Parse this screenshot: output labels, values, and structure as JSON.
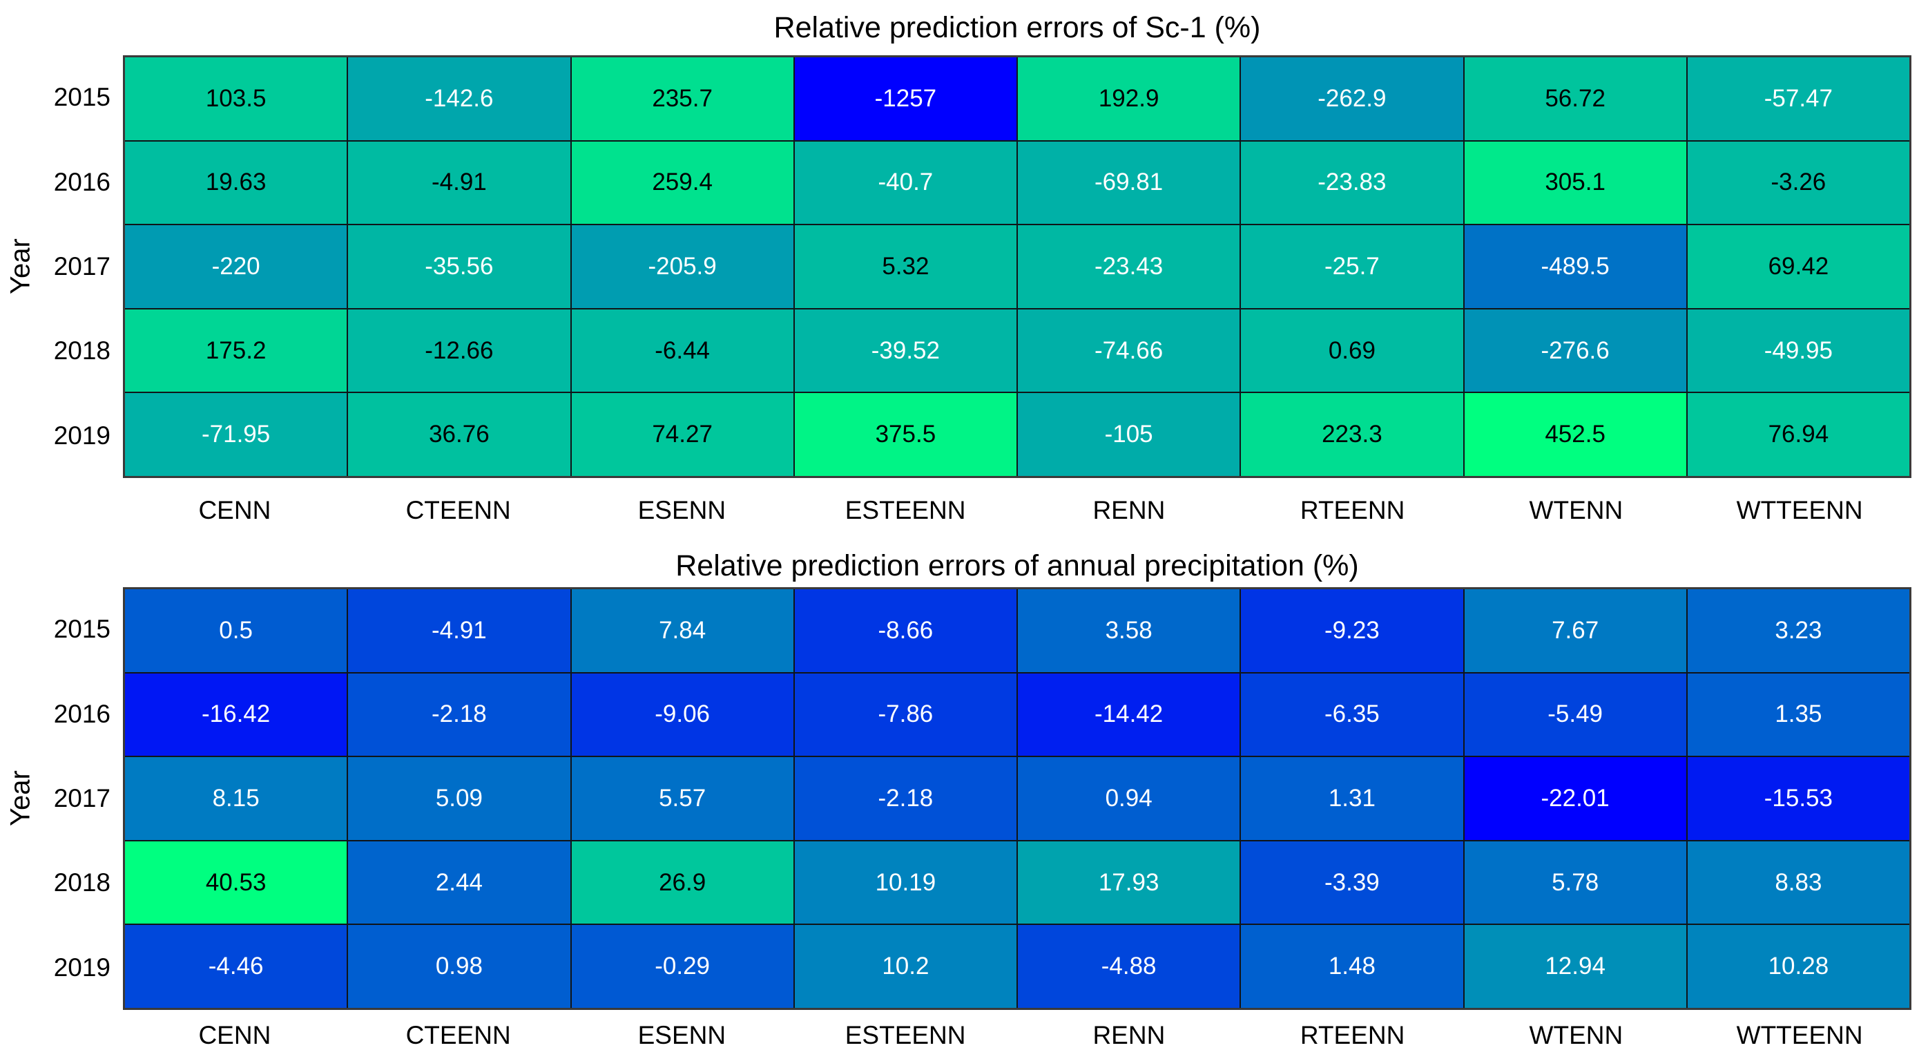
{
  "colors": {
    "background": "#ffffff",
    "grid_line": "#101418",
    "axis_border": "#3a3a3a",
    "cell_text_dark": "#000000",
    "cell_text_light": "#ffffff",
    "colormap_low": "#0000ff",
    "colormap_high": "#00ff80"
  },
  "chart_data": [
    {
      "type": "heatmap",
      "title": "Relative prediction errors  of Sc-1 (%)",
      "xlabel": "",
      "ylabel": "Year",
      "colormap": "winter",
      "legend_position": "none",
      "grid": true,
      "columns": [
        "CENN",
        "CTEENN",
        "ESENN",
        "ESTEENN",
        "RENN",
        "RTEENN",
        "WTENN",
        "WTTEENN"
      ],
      "rows": [
        "2015",
        "2016",
        "2017",
        "2018",
        "2019"
      ],
      "values": [
        [
          103.5,
          -142.6,
          235.7,
          -1257,
          192.9,
          -262.9,
          56.72,
          -57.47
        ],
        [
          19.63,
          -4.91,
          259.4,
          -40.7,
          -69.81,
          -23.83,
          305.1,
          -3.26
        ],
        [
          -220,
          -35.56,
          -205.9,
          5.32,
          -23.43,
          -25.7,
          -489.5,
          69.42
        ],
        [
          175.2,
          -12.66,
          -6.44,
          -39.52,
          -74.66,
          0.69,
          -276.6,
          -49.95
        ],
        [
          -71.95,
          36.76,
          74.27,
          375.5,
          -105,
          223.3,
          452.5,
          76.94
        ]
      ],
      "color_scale": {
        "min": -1257,
        "max": 452.5
      }
    },
    {
      "type": "heatmap",
      "title": "Relative prediction errors of annual precipitation (%)",
      "xlabel": "",
      "ylabel": "Year",
      "colormap": "winter",
      "legend_position": "none",
      "grid": true,
      "columns": [
        "CENN",
        "CTEENN",
        "ESENN",
        "ESTEENN",
        "RENN",
        "RTEENN",
        "WTENN",
        "WTTEENN"
      ],
      "rows": [
        "2015",
        "2016",
        "2017",
        "2018",
        "2019"
      ],
      "values": [
        [
          0.5,
          -4.91,
          7.84,
          -8.66,
          3.58,
          -9.23,
          7.67,
          3.23
        ],
        [
          -16.42,
          -2.18,
          -9.06,
          -7.86,
          -14.42,
          -6.35,
          -5.49,
          1.35
        ],
        [
          8.15,
          5.09,
          5.57,
          -2.18,
          0.94,
          1.31,
          -22.01,
          -15.53
        ],
        [
          40.53,
          2.44,
          26.9,
          10.19,
          17.93,
          -3.39,
          5.78,
          8.83
        ],
        [
          -4.46,
          0.98,
          -0.29,
          10.2,
          -4.88,
          1.48,
          12.94,
          10.28
        ]
      ],
      "color_scale": {
        "min": -22.01,
        "max": 40.53
      }
    }
  ]
}
